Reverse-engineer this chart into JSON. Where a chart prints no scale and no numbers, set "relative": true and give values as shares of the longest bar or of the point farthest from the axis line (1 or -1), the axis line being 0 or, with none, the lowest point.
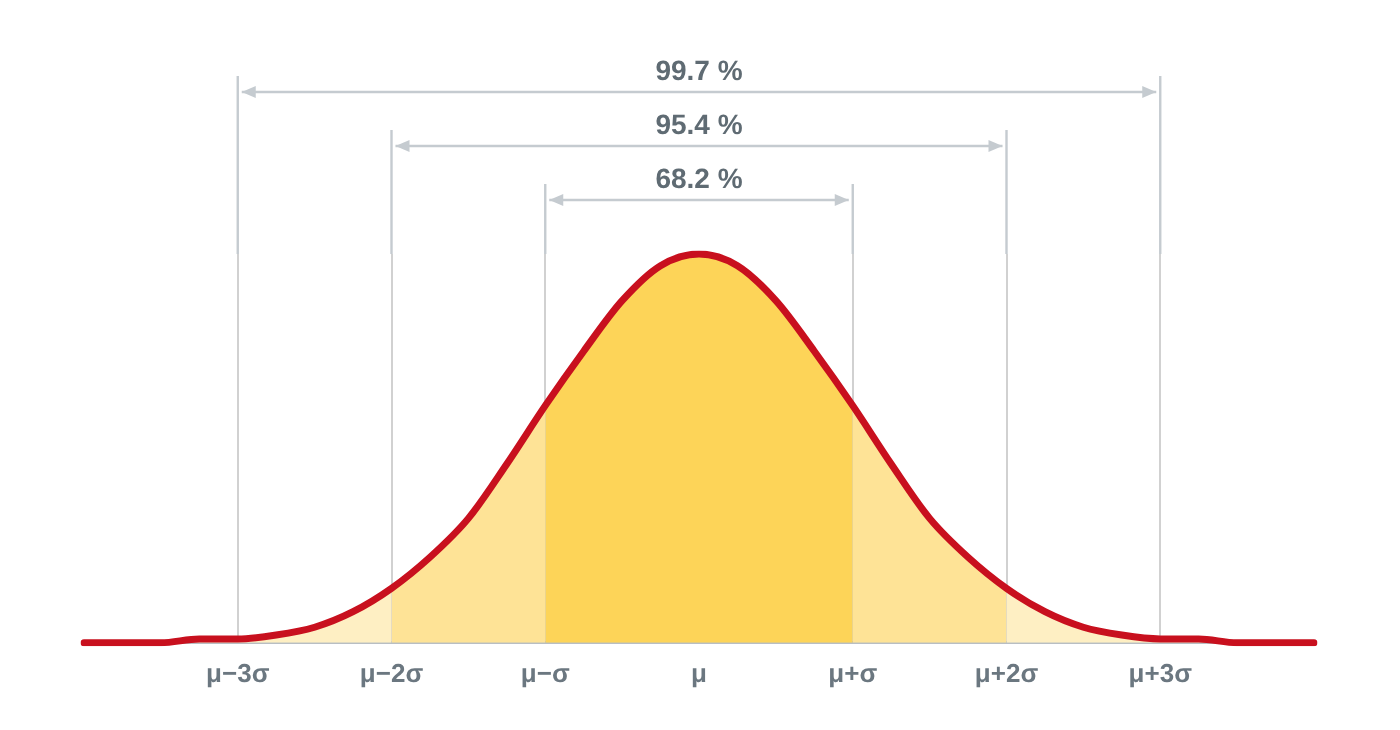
{
  "chart_data": {
    "type": "line",
    "relative": true,
    "legend": false,
    "grid": "x",
    "marker": "none",
    "line_style": "solid",
    "annotations": [
      "68.2 %",
      "95.4 %",
      "99.7 %"
    ],
    "categories": [
      null,
      null,
      null,
      null,
      "μ−3σ",
      null,
      null,
      null,
      "μ−2σ",
      null,
      null,
      null,
      "μ−σ",
      null,
      null,
      null,
      "μ",
      null,
      null,
      null,
      "μ+σ",
      null,
      null,
      null,
      "μ+2σ",
      null,
      null,
      null,
      "μ+3σ",
      null,
      null,
      null,
      null
    ],
    "series": [
      {
        "type": "area",
        "color": "#feefc3",
        "values": [
          0,
          0,
          0,
          0.01,
          0.01,
          0.02,
          0.04,
          0.08,
          0.14,
          null,
          null,
          null,
          null,
          null,
          null,
          null,
          null,
          null,
          null,
          null,
          null,
          null,
          null,
          null,
          null,
          null,
          null,
          null,
          null,
          null,
          null,
          null,
          null
        ]
      },
      {
        "type": "area",
        "color": "#fee396",
        "values": [
          null,
          null,
          null,
          null,
          null,
          null,
          null,
          null,
          0.14,
          0.22,
          0.32,
          0.46,
          0.61,
          null,
          null,
          null,
          null,
          null,
          null,
          null,
          null,
          null,
          null,
          null,
          null,
          null,
          null,
          null,
          null,
          null,
          null,
          null,
          null
        ]
      },
      {
        "type": "area",
        "color": "#fdd458",
        "values": [
          null,
          null,
          null,
          null,
          null,
          null,
          null,
          null,
          null,
          null,
          null,
          null,
          0.61,
          0.75,
          0.88,
          0.97,
          1,
          0.97,
          0.88,
          0.75,
          0.61,
          null,
          null,
          null,
          null,
          null,
          null,
          null,
          null,
          null,
          null,
          null,
          null
        ]
      },
      {
        "type": "area",
        "color": "#fee396",
        "values": [
          null,
          null,
          null,
          null,
          null,
          null,
          null,
          null,
          null,
          null,
          null,
          null,
          null,
          null,
          null,
          null,
          null,
          null,
          null,
          null,
          0.61,
          0.46,
          0.32,
          0.22,
          0.14,
          null,
          null,
          null,
          null,
          null,
          null,
          null,
          null
        ]
      },
      {
        "type": "area",
        "color": "#feefc3",
        "values": [
          null,
          null,
          null,
          null,
          null,
          null,
          null,
          null,
          null,
          null,
          null,
          null,
          null,
          null,
          null,
          null,
          null,
          null,
          null,
          null,
          null,
          null,
          null,
          null,
          0.14,
          0.08,
          0.04,
          0.02,
          0.01,
          0.01,
          0,
          0,
          0
        ]
      },
      {
        "color": "#c8101e",
        "values": [
          0,
          0,
          0,
          0.01,
          0.01,
          0.02,
          0.04,
          0.08,
          0.14,
          0.22,
          0.32,
          0.46,
          0.61,
          0.75,
          0.88,
          0.97,
          1,
          0.97,
          0.88,
          0.75,
          0.61,
          0.46,
          0.32,
          0.22,
          0.14,
          0.08,
          0.04,
          0.02,
          0.01,
          0.01,
          0,
          0,
          0
        ]
      }
    ]
  }
}
